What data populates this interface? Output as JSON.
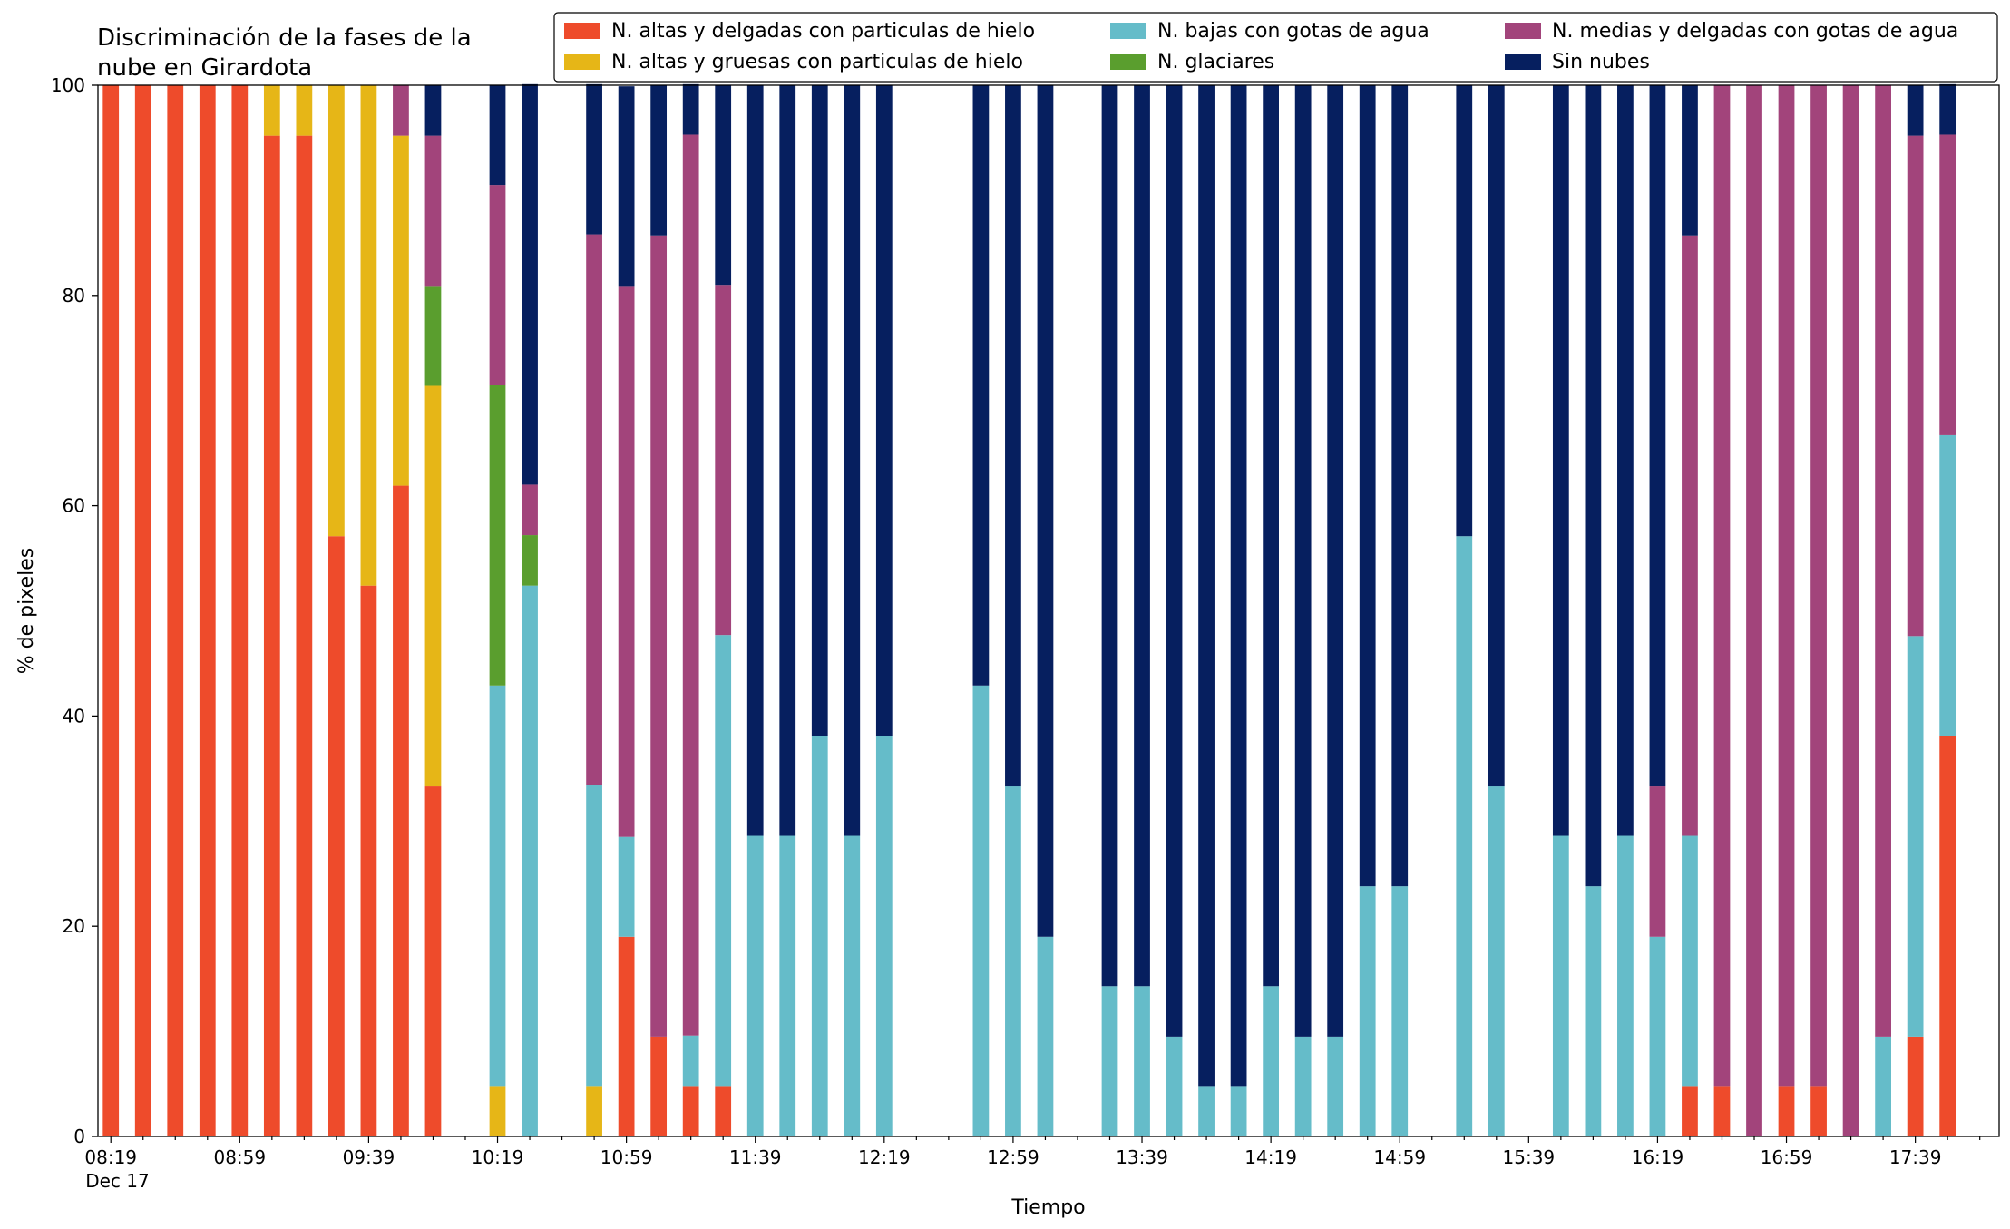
{
  "chart_data": {
    "type": "bar",
    "stacked": true,
    "title": "Discriminación de la fases de la\nnube en Girardota",
    "xlabel": "Tiempo",
    "ylabel": "% de pixeles",
    "ylim": [
      0,
      100
    ],
    "yticks": [
      0,
      20,
      40,
      60,
      80,
      100
    ],
    "xlim_minutes": [
      495,
      1085
    ],
    "xticks": [
      {
        "t": 499,
        "label": "08:19",
        "sublabel": "Dec 17"
      },
      {
        "t": 539,
        "label": "08:59"
      },
      {
        "t": 579,
        "label": "09:39"
      },
      {
        "t": 619,
        "label": "10:19"
      },
      {
        "t": 659,
        "label": "10:59"
      },
      {
        "t": 699,
        "label": "11:39"
      },
      {
        "t": 739,
        "label": "12:19"
      },
      {
        "t": 779,
        "label": "12:59"
      },
      {
        "t": 819,
        "label": "13:39"
      },
      {
        "t": 859,
        "label": "14:19"
      },
      {
        "t": 899,
        "label": "14:59"
      },
      {
        "t": 939,
        "label": "15:39"
      },
      {
        "t": 979,
        "label": "16:19"
      },
      {
        "t": 1019,
        "label": "16:59"
      },
      {
        "t": 1059,
        "label": "17:39"
      }
    ],
    "legend": {
      "position": "top-right",
      "columns": [
        [
          "N. altas y delgadas con particulas de hielo",
          "N. altas y gruesas con particulas de hielo"
        ],
        [
          "N. bajas con gotas de agua",
          "N. glaciares"
        ],
        [
          "N. medias y delgadas con gotas de agua",
          "Sin nubes"
        ]
      ]
    },
    "series_order": [
      "altas_delgadas",
      "altas_gruesas",
      "bajas",
      "glaciares",
      "medias",
      "sin_nubes"
    ],
    "series": [
      {
        "key": "altas_delgadas",
        "name": "N. altas y delgadas con particulas de hielo",
        "color": "#ee4b2b"
      },
      {
        "key": "altas_gruesas",
        "name": "N. altas y gruesas con particulas de hielo",
        "color": "#e6b617"
      },
      {
        "key": "bajas",
        "name": "N. bajas con gotas de agua",
        "color": "#65bcc9"
      },
      {
        "key": "glaciares",
        "name": "N. glaciares",
        "color": "#5a9e2e"
      },
      {
        "key": "medias",
        "name": "N. medias y delgadas con gotas de agua",
        "color": "#a2447b"
      },
      {
        "key": "sin_nubes",
        "name": "Sin nubes",
        "color": "#061f5f"
      }
    ],
    "bars": [
      {
        "time": "08:19",
        "values": [
          100,
          0,
          0,
          0,
          0,
          0
        ]
      },
      {
        "time": "08:29",
        "values": [
          100,
          0,
          0,
          0,
          0,
          0
        ]
      },
      {
        "time": "08:39",
        "values": [
          100,
          0,
          0,
          0,
          0,
          0
        ]
      },
      {
        "time": "08:49",
        "values": [
          100,
          0,
          0,
          0,
          0,
          0
        ]
      },
      {
        "time": "08:59",
        "values": [
          100,
          0,
          0,
          0,
          0,
          0
        ]
      },
      {
        "time": "09:09",
        "values": [
          95.2,
          4.8,
          0,
          0,
          0,
          0
        ]
      },
      {
        "time": "09:19",
        "values": [
          95.2,
          4.8,
          0,
          0,
          0,
          0
        ]
      },
      {
        "time": "09:29",
        "values": [
          57.1,
          42.9,
          0,
          0,
          0,
          0
        ]
      },
      {
        "time": "09:39",
        "values": [
          52.4,
          47.6,
          0,
          0,
          0,
          0
        ]
      },
      {
        "time": "09:49",
        "values": [
          61.9,
          33.3,
          0,
          0,
          4.8,
          0
        ]
      },
      {
        "time": "09:59",
        "values": [
          33.3,
          38.1,
          0,
          9.5,
          14.3,
          4.8
        ]
      },
      {
        "time": "10:19",
        "values": [
          0,
          4.8,
          38.1,
          28.6,
          19.0,
          9.5
        ]
      },
      {
        "time": "10:29",
        "values": [
          0,
          0,
          52.4,
          4.8,
          4.8,
          38.1
        ]
      },
      {
        "time": "10:49",
        "values": [
          0,
          4.8,
          28.6,
          0,
          52.4,
          14.3
        ]
      },
      {
        "time": "10:59",
        "values": [
          19.0,
          0,
          9.5,
          0,
          52.4,
          19.0
        ]
      },
      {
        "time": "11:09",
        "values": [
          9.5,
          0,
          0,
          0,
          76.2,
          14.3
        ]
      },
      {
        "time": "11:19",
        "values": [
          4.8,
          0,
          4.8,
          0,
          85.7,
          4.8
        ]
      },
      {
        "time": "11:29",
        "values": [
          4.8,
          0,
          42.9,
          0,
          33.3,
          19.0
        ]
      },
      {
        "time": "11:39",
        "values": [
          0,
          0,
          28.6,
          0,
          0,
          71.4
        ]
      },
      {
        "time": "11:49",
        "values": [
          0,
          0,
          28.6,
          0,
          0,
          71.4
        ]
      },
      {
        "time": "11:59",
        "values": [
          0,
          0,
          38.1,
          0,
          0,
          61.9
        ]
      },
      {
        "time": "12:09",
        "values": [
          0,
          0,
          28.6,
          0,
          0,
          71.4
        ]
      },
      {
        "time": "12:19",
        "values": [
          0,
          0,
          38.1,
          0,
          0,
          61.9
        ]
      },
      {
        "time": "12:49",
        "values": [
          0,
          0,
          42.9,
          0,
          0,
          57.1
        ]
      },
      {
        "time": "12:59",
        "values": [
          0,
          0,
          33.3,
          0,
          0,
          66.7
        ]
      },
      {
        "time": "13:09",
        "values": [
          0,
          0,
          19.0,
          0,
          0,
          81.0
        ]
      },
      {
        "time": "13:29",
        "values": [
          0,
          0,
          14.3,
          0,
          0,
          85.7
        ]
      },
      {
        "time": "13:39",
        "values": [
          0,
          0,
          14.3,
          0,
          0,
          85.7
        ]
      },
      {
        "time": "13:49",
        "values": [
          0,
          0,
          9.5,
          0,
          0,
          90.5
        ]
      },
      {
        "time": "13:59",
        "values": [
          0,
          0,
          4.8,
          0,
          0,
          95.2
        ]
      },
      {
        "time": "14:09",
        "values": [
          0,
          0,
          4.8,
          0,
          0,
          95.2
        ]
      },
      {
        "time": "14:19",
        "values": [
          0,
          0,
          14.3,
          0,
          0,
          85.7
        ]
      },
      {
        "time": "14:29",
        "values": [
          0,
          0,
          9.5,
          0,
          0,
          90.5
        ]
      },
      {
        "time": "14:39",
        "values": [
          0,
          0,
          9.5,
          0,
          0,
          90.5
        ]
      },
      {
        "time": "14:49",
        "values": [
          0,
          0,
          23.8,
          0,
          0,
          76.2
        ]
      },
      {
        "time": "14:59",
        "values": [
          0,
          0,
          23.8,
          0,
          0,
          76.2
        ]
      },
      {
        "time": "15:19",
        "values": [
          0,
          0,
          57.1,
          0,
          0,
          42.9
        ]
      },
      {
        "time": "15:29",
        "values": [
          0,
          0,
          33.3,
          0,
          0,
          66.7
        ]
      },
      {
        "time": "15:49",
        "values": [
          0,
          0,
          28.6,
          0,
          0,
          71.4
        ]
      },
      {
        "time": "15:59",
        "values": [
          0,
          0,
          23.8,
          0,
          0,
          76.2
        ]
      },
      {
        "time": "16:09",
        "values": [
          0,
          0,
          28.6,
          0,
          0,
          71.4
        ]
      },
      {
        "time": "16:19",
        "values": [
          0,
          0,
          19.0,
          0,
          14.3,
          66.7
        ]
      },
      {
        "time": "16:29",
        "values": [
          4.8,
          0,
          23.8,
          0,
          57.1,
          14.3
        ]
      },
      {
        "time": "16:39",
        "values": [
          4.8,
          0,
          0,
          0,
          95.2,
          0
        ]
      },
      {
        "time": "16:49",
        "values": [
          0,
          0,
          0,
          0,
          100,
          0
        ]
      },
      {
        "time": "16:59",
        "values": [
          4.8,
          0,
          0,
          0,
          95.2,
          0
        ]
      },
      {
        "time": "17:09",
        "values": [
          4.8,
          0,
          0,
          0,
          95.2,
          0
        ]
      },
      {
        "time": "17:19",
        "values": [
          0,
          0,
          0,
          0,
          100,
          0
        ]
      },
      {
        "time": "17:29",
        "values": [
          0,
          0,
          9.5,
          0,
          90.5,
          0
        ]
      },
      {
        "time": "17:39",
        "values": [
          9.5,
          0,
          38.1,
          0,
          47.6,
          4.8
        ]
      },
      {
        "time": "17:49",
        "values": [
          38.1,
          0,
          28.6,
          0,
          28.6,
          4.8
        ]
      }
    ]
  }
}
